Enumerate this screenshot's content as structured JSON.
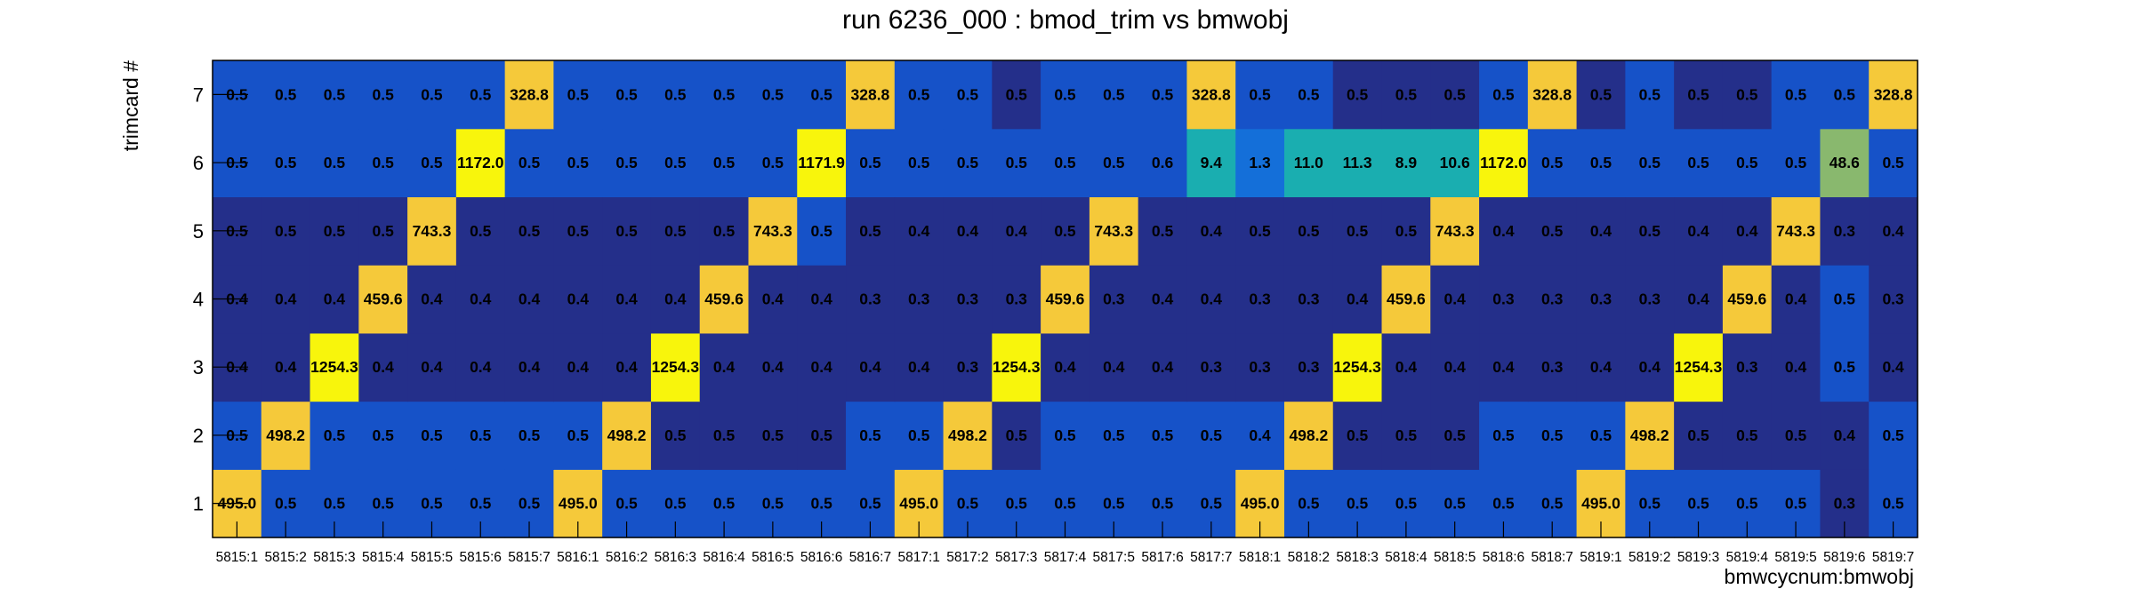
{
  "chart_data": {
    "type": "heatmap",
    "title": "run 6236_000 : bmod_trim vs bmwobj",
    "xlabel": "bmwcycnum:bmwobj",
    "ylabel": "trimcard #",
    "x_categories": [
      "5815:1",
      "5815:2",
      "5815:3",
      "5815:4",
      "5815:5",
      "5815:6",
      "5815:7",
      "5816:1",
      "5816:2",
      "5816:3",
      "5816:4",
      "5816:5",
      "5816:6",
      "5816:7",
      "5817:1",
      "5817:2",
      "5817:3",
      "5817:4",
      "5817:5",
      "5817:6",
      "5817:7",
      "5818:1",
      "5818:2",
      "5818:3",
      "5818:4",
      "5818:5",
      "5818:6",
      "5818:7",
      "5819:1",
      "5819:2",
      "5819:3",
      "5819:4",
      "5819:5",
      "5819:6",
      "5819:7"
    ],
    "y_categories": [
      "1",
      "2",
      "3",
      "4",
      "5",
      "6",
      "7"
    ],
    "values": [
      [
        "495.0",
        "0.5",
        "0.5",
        "0.5",
        "0.5",
        "0.5",
        "0.5",
        "495.0",
        "0.5",
        "0.5",
        "0.5",
        "0.5",
        "0.5",
        "0.5",
        "495.0",
        "0.5",
        "0.5",
        "0.5",
        "0.5",
        "0.5",
        "0.5",
        "495.0",
        "0.5",
        "0.5",
        "0.5",
        "0.5",
        "0.5",
        "0.5",
        "495.0",
        "0.5",
        "0.5",
        "0.5",
        "0.5",
        "0.3",
        "0.5"
      ],
      [
        "0.5",
        "498.2",
        "0.5",
        "0.5",
        "0.5",
        "0.5",
        "0.5",
        "0.5",
        "498.2",
        "0.5",
        "0.5",
        "0.5",
        "0.5",
        "0.5",
        "0.5",
        "498.2",
        "0.5",
        "0.5",
        "0.5",
        "0.5",
        "0.5",
        "0.4",
        "498.2",
        "0.5",
        "0.5",
        "0.5",
        "0.5",
        "0.5",
        "0.5",
        "498.2",
        "0.5",
        "0.5",
        "0.5",
        "0.4",
        "0.5"
      ],
      [
        "0.4",
        "0.4",
        "1254.3",
        "0.4",
        "0.4",
        "0.4",
        "0.4",
        "0.4",
        "0.4",
        "1254.3",
        "0.4",
        "0.4",
        "0.4",
        "0.4",
        "0.4",
        "0.3",
        "1254.3",
        "0.4",
        "0.4",
        "0.4",
        "0.3",
        "0.3",
        "0.3",
        "1254.3",
        "0.4",
        "0.4",
        "0.4",
        "0.3",
        "0.4",
        "0.4",
        "1254.3",
        "0.3",
        "0.4",
        "0.5",
        "0.4"
      ],
      [
        "0.4",
        "0.4",
        "0.4",
        "459.6",
        "0.4",
        "0.4",
        "0.4",
        "0.4",
        "0.4",
        "0.4",
        "459.6",
        "0.4",
        "0.4",
        "0.3",
        "0.3",
        "0.3",
        "0.3",
        "459.6",
        "0.3",
        "0.4",
        "0.4",
        "0.3",
        "0.3",
        "0.4",
        "459.6",
        "0.4",
        "0.3",
        "0.3",
        "0.3",
        "0.3",
        "0.4",
        "459.6",
        "0.4",
        "0.5",
        "0.3"
      ],
      [
        "0.5",
        "0.5",
        "0.5",
        "0.5",
        "743.3",
        "0.5",
        "0.5",
        "0.5",
        "0.5",
        "0.5",
        "0.5",
        "743.3",
        "0.5",
        "0.5",
        "0.4",
        "0.4",
        "0.4",
        "0.5",
        "743.3",
        "0.5",
        "0.4",
        "0.5",
        "0.5",
        "0.5",
        "0.5",
        "743.3",
        "0.4",
        "0.5",
        "0.4",
        "0.5",
        "0.4",
        "0.4",
        "743.3",
        "0.3",
        "0.4"
      ],
      [
        "0.5",
        "0.5",
        "0.5",
        "0.5",
        "0.5",
        "1172.0",
        "0.5",
        "0.5",
        "0.5",
        "0.5",
        "0.5",
        "0.5",
        "1171.9",
        "0.5",
        "0.5",
        "0.5",
        "0.5",
        "0.5",
        "0.5",
        "0.6",
        "9.4",
        "1.3",
        "11.0",
        "11.3",
        "8.9",
        "10.6",
        "1172.0",
        "0.5",
        "0.5",
        "0.5",
        "0.5",
        "0.5",
        "0.5",
        "48.6",
        "0.5"
      ],
      [
        "0.5",
        "0.5",
        "0.5",
        "0.5",
        "0.5",
        "0.5",
        "328.8",
        "0.5",
        "0.5",
        "0.5",
        "0.5",
        "0.5",
        "0.5",
        "328.8",
        "0.5",
        "0.5",
        "0.5",
        "0.5",
        "0.5",
        "0.5",
        "328.8",
        "0.5",
        "0.5",
        "0.5",
        "0.5",
        "0.5",
        "0.5",
        "328.8",
        "0.5",
        "0.5",
        "0.5",
        "0.5",
        "0.5",
        "0.5",
        "328.8"
      ]
    ],
    "colors": {
      "low": "#242f8a",
      "mid_low": "#1652c8",
      "blue_mid": "#146fd9",
      "teal": "#1aaeb0",
      "green": "#89b86e",
      "orange": "#f5c93a",
      "yellow": "#f8f50c"
    },
    "cell_colors": [
      [
        "orange",
        "mid_low",
        "mid_low",
        "mid_low",
        "mid_low",
        "mid_low",
        "mid_low",
        "orange",
        "mid_low",
        "mid_low",
        "mid_low",
        "mid_low",
        "mid_low",
        "mid_low",
        "orange",
        "mid_low",
        "mid_low",
        "mid_low",
        "mid_low",
        "mid_low",
        "mid_low",
        "orange",
        "mid_low",
        "mid_low",
        "mid_low",
        "mid_low",
        "mid_low",
        "mid_low",
        "orange",
        "mid_low",
        "mid_low",
        "mid_low",
        "mid_low",
        "low",
        "mid_low"
      ],
      [
        "mid_low",
        "orange",
        "mid_low",
        "mid_low",
        "mid_low",
        "mid_low",
        "mid_low",
        "mid_low",
        "orange",
        "low",
        "low",
        "low",
        "low",
        "mid_low",
        "mid_low",
        "orange",
        "low",
        "mid_low",
        "mid_low",
        "mid_low",
        "mid_low",
        "mid_low",
        "orange",
        "low",
        "low",
        "low",
        "mid_low",
        "mid_low",
        "mid_low",
        "orange",
        "low",
        "low",
        "low",
        "low",
        "mid_low"
      ],
      [
        "low",
        "low",
        "yellow",
        "low",
        "low",
        "low",
        "low",
        "low",
        "low",
        "yellow",
        "low",
        "low",
        "low",
        "low",
        "low",
        "low",
        "yellow",
        "low",
        "low",
        "low",
        "low",
        "low",
        "low",
        "yellow",
        "low",
        "low",
        "low",
        "low",
        "low",
        "low",
        "yellow",
        "low",
        "low",
        "mid_low",
        "low"
      ],
      [
        "low",
        "low",
        "low",
        "orange",
        "low",
        "low",
        "low",
        "low",
        "low",
        "low",
        "orange",
        "low",
        "low",
        "low",
        "low",
        "low",
        "low",
        "orange",
        "low",
        "low",
        "low",
        "low",
        "low",
        "low",
        "orange",
        "low",
        "low",
        "low",
        "low",
        "low",
        "low",
        "orange",
        "low",
        "mid_low",
        "low"
      ],
      [
        "low",
        "low",
        "low",
        "low",
        "orange",
        "low",
        "low",
        "low",
        "low",
        "low",
        "low",
        "orange",
        "mid_low",
        "low",
        "low",
        "low",
        "low",
        "low",
        "orange",
        "low",
        "low",
        "low",
        "low",
        "low",
        "low",
        "orange",
        "low",
        "low",
        "low",
        "low",
        "low",
        "low",
        "orange",
        "low",
        "low"
      ],
      [
        "mid_low",
        "mid_low",
        "mid_low",
        "mid_low",
        "mid_low",
        "yellow",
        "mid_low",
        "mid_low",
        "mid_low",
        "mid_low",
        "mid_low",
        "mid_low",
        "yellow",
        "mid_low",
        "mid_low",
        "mid_low",
        "mid_low",
        "mid_low",
        "mid_low",
        "mid_low",
        "teal",
        "blue_mid",
        "teal",
        "teal",
        "teal",
        "teal",
        "yellow",
        "mid_low",
        "mid_low",
        "mid_low",
        "mid_low",
        "mid_low",
        "mid_low",
        "green",
        "mid_low"
      ],
      [
        "mid_low",
        "mid_low",
        "mid_low",
        "mid_low",
        "mid_low",
        "mid_low",
        "orange",
        "mid_low",
        "mid_low",
        "mid_low",
        "mid_low",
        "mid_low",
        "mid_low",
        "orange",
        "mid_low",
        "mid_low",
        "low",
        "mid_low",
        "mid_low",
        "mid_low",
        "orange",
        "mid_low",
        "mid_low",
        "low",
        "low",
        "low",
        "mid_low",
        "orange",
        "low",
        "mid_low",
        "low",
        "low",
        "mid_low",
        "mid_low",
        "orange"
      ]
    ]
  }
}
